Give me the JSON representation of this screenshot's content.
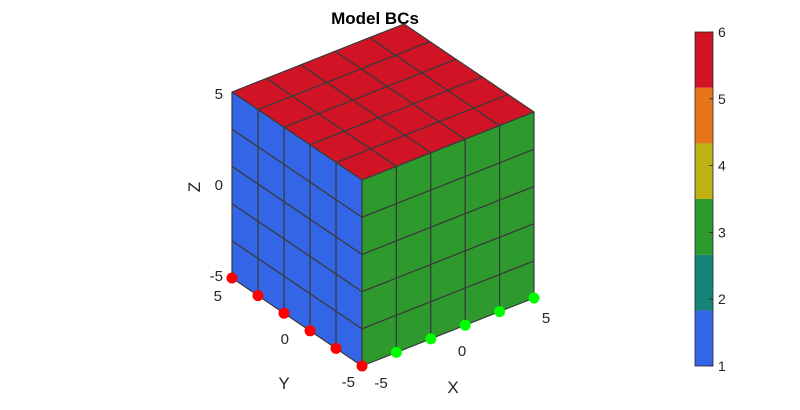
{
  "chart_data": {
    "type": "3d-mesh",
    "title": "Model BCs",
    "xlabel": "X",
    "ylabel": "Y",
    "zlabel": "Z",
    "xlim": [
      -5,
      5
    ],
    "ylim": [
      -5,
      5
    ],
    "zlim": [
      -5,
      5
    ],
    "x_ticks": [
      "-5",
      "0",
      "5"
    ],
    "y_ticks": [
      "-5",
      "0",
      "5"
    ],
    "z_ticks": [
      "-5",
      "0",
      "5"
    ],
    "grid_divisions": 5,
    "faces": [
      {
        "face": "top (z = 5)",
        "value": 6,
        "color": "#d01426"
      },
      {
        "face": "front-left (x = -5)",
        "value": 1,
        "color": "#3366e6"
      },
      {
        "face": "front-right (y = -5)",
        "value": 3,
        "color": "#2e9a2e"
      }
    ],
    "bc_nodes": [
      {
        "edge": "x = -5, z = -5",
        "count": 6,
        "color": "#ff0000"
      },
      {
        "edge": "y = -5, z = -5",
        "count": 5,
        "color": "#00ff00"
      }
    ],
    "colorbar": {
      "range": [
        1,
        6
      ],
      "ticks": [
        "1",
        "2",
        "3",
        "4",
        "5",
        "6"
      ],
      "colors": [
        "#3366e6",
        "#168577",
        "#2e9a2e",
        "#bfb014",
        "#e6761a",
        "#d01426"
      ]
    }
  }
}
